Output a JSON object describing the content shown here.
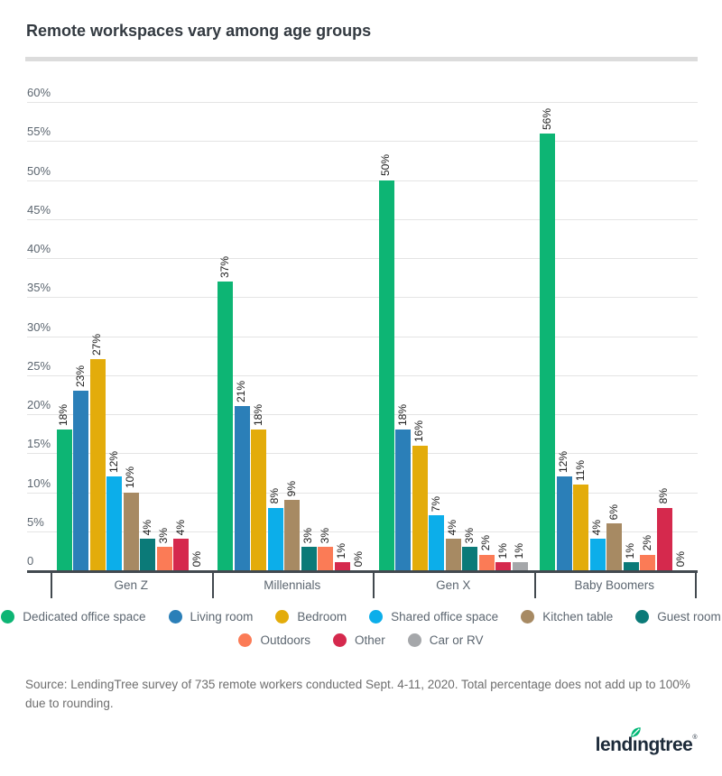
{
  "header": {
    "title": "Remote workspaces vary among age groups"
  },
  "chart_data": {
    "type": "bar",
    "title": "Remote workspaces vary among age groups",
    "categories": [
      "Gen Z",
      "Millennials",
      "Gen X",
      "Baby Boomers"
    ],
    "series": [
      {
        "name": "Dedicated office space",
        "color": "#0db574",
        "values": [
          18,
          37,
          50,
          56
        ]
      },
      {
        "name": "Living room",
        "color": "#2b7fb8",
        "values": [
          23,
          21,
          18,
          12
        ]
      },
      {
        "name": "Bedroom",
        "color": "#e3ac0b",
        "values": [
          27,
          18,
          16,
          11
        ]
      },
      {
        "name": "Shared office space",
        "color": "#0caeea",
        "values": [
          12,
          8,
          7,
          4
        ]
      },
      {
        "name": "Kitchen table",
        "color": "#a78a63",
        "values": [
          10,
          9,
          4,
          6
        ]
      },
      {
        "name": "Guest room",
        "color": "#0b7a78",
        "values": [
          4,
          3,
          3,
          1
        ]
      },
      {
        "name": "Outdoors",
        "color": "#fb7b56",
        "values": [
          3,
          3,
          2,
          2
        ]
      },
      {
        "name": "Other",
        "color": "#d5294d",
        "values": [
          4,
          1,
          1,
          8
        ]
      },
      {
        "name": "Car or RV",
        "color": "#a5a7aa",
        "values": [
          0,
          0,
          1,
          0
        ]
      }
    ],
    "ylim": [
      0,
      60
    ],
    "ytick_values": [
      0,
      5,
      10,
      15,
      20,
      25,
      30,
      35,
      40,
      45,
      50,
      55,
      60
    ],
    "ytick_labels": [
      "0",
      "5%",
      "10%",
      "15%",
      "20%",
      "25%",
      "30%",
      "35%",
      "40%",
      "45%",
      "50%",
      "55%",
      "60%"
    ],
    "value_label_suffix": "%",
    "grid": true,
    "legend_position": "bottom",
    "legend_rows": [
      [
        0,
        1,
        2,
        3,
        4,
        5
      ],
      [
        6,
        7,
        8
      ]
    ]
  },
  "source": {
    "text": "Source: LendingTree survey of 735 remote workers conducted Sept. 4-11, 2020. Total percentage does not add up to 100% due to rounding."
  },
  "logo": {
    "prefix": "lend",
    "dotless_i": "ı",
    "suffix": "ngtree",
    "trademark": "®",
    "leaf_color": "#00b876",
    "text_color": "#1c2a39"
  }
}
